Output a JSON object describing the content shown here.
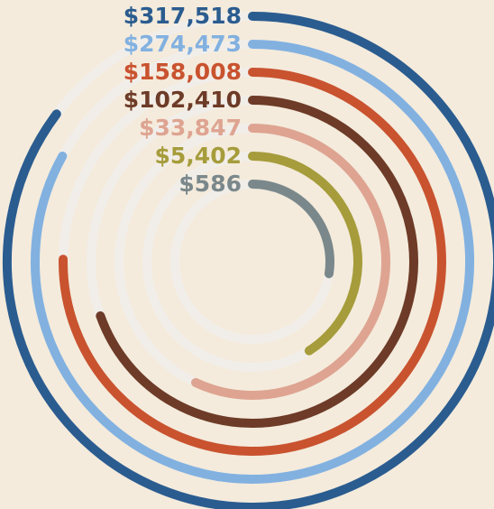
{
  "chart_data": {
    "type": "radial-bar",
    "values": [
      317518,
      274473,
      158008,
      102410,
      33847,
      5402,
      586
    ],
    "value_labels": [
      "$317,518",
      "$274,473",
      "$158,008",
      "$102,410",
      "$33,847",
      "$5,402",
      "$586"
    ],
    "colors": [
      "#2b5c8f",
      "#82b1e0",
      "#c9532f",
      "#6d3b27",
      "#dea491",
      "#a69c3b",
      "#7b888b"
    ]
  }
}
